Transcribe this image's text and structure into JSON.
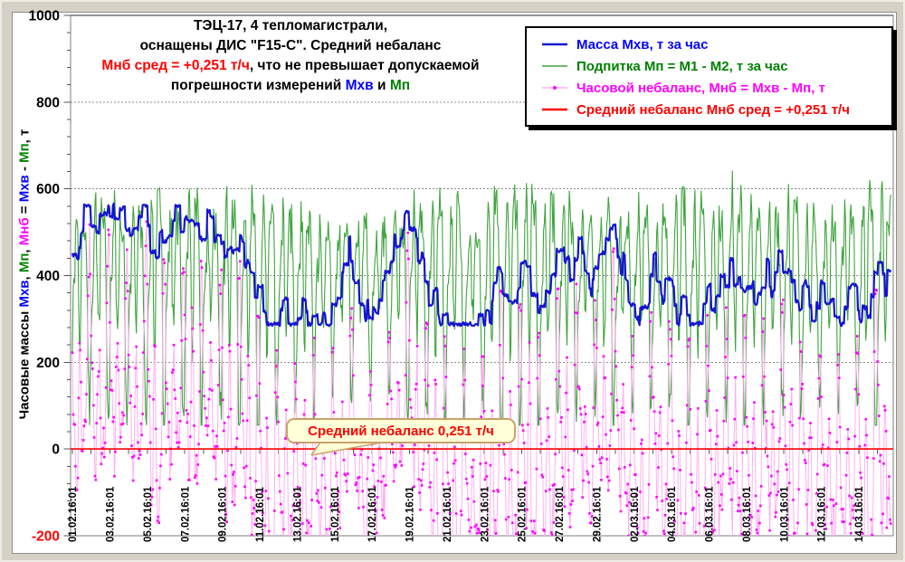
{
  "window": {
    "background_color": "#d5d1c6",
    "chart_background": "#ffffff"
  },
  "title": {
    "lines": [
      [
        {
          "text": "ТЭЦ-17,  4 тепломагистрали,",
          "color": "#000000"
        }
      ],
      [
        {
          "text": "оснащены ДИС \"F15-C\". Средний небаланс",
          "color": "#000000"
        }
      ],
      [
        {
          "text": "Мнб сред = +0,251 т/ч",
          "color": "#ff0000"
        },
        {
          "text": ", что не превышает допускаемой",
          "color": "#000000"
        }
      ],
      [
        {
          "text": "погрешности измерений ",
          "color": "#000000"
        },
        {
          "text": "Мхв",
          "color": "#0000ff"
        },
        {
          "text": " и ",
          "color": "#000000"
        },
        {
          "text": "Мп",
          "color": "#008000"
        }
      ]
    ]
  },
  "annotation": {
    "text": "Средний небаланс 0,251 т/ч",
    "text_color": "#ff0000",
    "fill": "#ffffd8",
    "border": "#c9a26a",
    "points_to_value": 0.251
  },
  "chart_data": {
    "type": "line",
    "title": "ТЭЦ-17, 4 тепломагистрали, оснащены ДИС \"F15-C\". Средний небаланс Мнб сред = +0,251 т/ч, что не превышает допускаемой погрешности измерений Мхв и Мп",
    "ylabel_segments": [
      {
        "text": "Часовые массы ",
        "color": "#000000"
      },
      {
        "text": "Мхв",
        "color": "#0000ff"
      },
      {
        "text": ", ",
        "color": "#000000"
      },
      {
        "text": "Мп",
        "color": "#008000"
      },
      {
        "text": ", ",
        "color": "#000000"
      },
      {
        "text": "Мнб",
        "color": "#ff00ff"
      },
      {
        "text": " = ",
        "color": "#000000"
      },
      {
        "text": "Мхв",
        "color": "#0000ff"
      },
      {
        "text": " - ",
        "color": "#000000"
      },
      {
        "text": "Мп",
        "color": "#008000"
      },
      {
        "text": ", т",
        "color": "#000000"
      }
    ],
    "y_axis": {
      "min": -200,
      "max": 1000,
      "major_step": 200,
      "minor_step": 40,
      "ticks": [
        {
          "value": 1000,
          "label": "1000",
          "color": "#000000"
        },
        {
          "value": 800,
          "label": "800",
          "color": "#000000"
        },
        {
          "value": 600,
          "label": "600",
          "color": "#000000"
        },
        {
          "value": 400,
          "label": "400",
          "color": "#000000"
        },
        {
          "value": 200,
          "label": "200",
          "color": "#000000"
        },
        {
          "value": 0,
          "label": "0",
          "color": "#000000"
        },
        {
          "value": -200,
          "label": "-200",
          "color": "#ff0000"
        }
      ],
      "gridlines_at": [
        200,
        400,
        600,
        800
      ],
      "grid_color": "#8c8c8c"
    },
    "x_axis": {
      "unit": "hour",
      "category_axis_at_value": 0,
      "tick_every_hours": 24,
      "label_every_hours": 48,
      "labels": [
        "01.02.16:01",
        "03.02.16:01",
        "05.02.16:01",
        "07.02.16:01",
        "09.02.16:01",
        "11.02.16:01",
        "13.02.16:01",
        "15.02.16:01",
        "17.02.16:01",
        "19.02.16:01",
        "21.02.16:01",
        "23.02.16:01",
        "25.02.16:01",
        "27.02.16:01",
        "29.02.16:01",
        "02.03.16:01",
        "04.03.16:01",
        "06.03.16:01",
        "08.03.16:01",
        "10.03.16:01",
        "12.03.16:01",
        "14.03.16:01"
      ]
    },
    "average_line": {
      "name": "Средний небаланс Мнб сред = +0,251 т/ч",
      "value": 0.251,
      "color": "#ff0000"
    },
    "series": [
      {
        "name": "Масса Мхв, т за час",
        "color": "#1414d2",
        "line_width": 2.2,
        "style": "stepped-random-walk",
        "approx_mean": 410,
        "approx_min": 280,
        "approx_max": 580,
        "gen": {
          "start": 448,
          "hold_min_h": 2,
          "hold_rand_h": 6,
          "jump_span": 135,
          "clamp_min": 288,
          "clamp_max": 562,
          "jitter": 9
        }
      },
      {
        "name": "Подпитка Мп = М1 - М2, т за час",
        "color": "#3fa43f",
        "line_width": 1.1,
        "style": "daily-multi-peak",
        "approx_mean": 385,
        "approx_min": 60,
        "approx_max": 780,
        "gen": {
          "base": 385,
          "amp": 210,
          "day_amp_min": 0.72,
          "day_amp_rand": 0.5,
          "noise": 110,
          "clamp_min": 55,
          "clamp_max": 785
        }
      },
      {
        "name": "Часовой небаланс, Мнб = Мхв - Мп, т",
        "marker_color": "#ff00ff",
        "connector_color": "#ffaff2",
        "style": "markers-with-thin-connector",
        "derived": "Мхв - Мп",
        "approx_mean": 0.251,
        "gen": {
          "noise": 36
        }
      }
    ],
    "samples": {
      "hours": 1050,
      "start": "01.02.16 01:00",
      "seed": 20160201
    },
    "legend": {
      "position": "top-right",
      "entries": [
        {
          "label": "Масса Мхв, т за час",
          "text_color": "#0000ff",
          "sample": "line",
          "sample_color": "#1414d2",
          "sample_width": 2.4
        },
        {
          "label": "Подпитка Мп = М1 - М2, т за час",
          "text_color": "#008000",
          "sample": "line",
          "sample_color": "#3fa43f",
          "sample_width": 1.6
        },
        {
          "label": "Часовой небаланс, Мнб = Мхв - Мп, т",
          "text_color": "#ff00ff",
          "sample": "dot-line",
          "sample_color": "#ffaff2",
          "dot_color": "#ff00ff",
          "sample_width": 1.4
        },
        {
          "label": "Средний небаланс Мнб сред = +0,251 т/ч",
          "text_color": "#ff0000",
          "sample": "line",
          "sample_color": "#ff0000",
          "sample_width": 2.4
        }
      ]
    }
  }
}
